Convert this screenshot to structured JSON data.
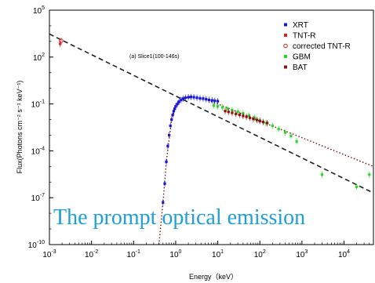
{
  "chart_data": {
    "type": "scatter",
    "xlabel": "Energy（keV）",
    "ylabel": "Flux(Photons cm⁻² s⁻¹ keV⁻¹)",
    "annotation": "(a) Slice1(100-146s)",
    "overlay_text": "The prompt optical emission",
    "x_scale": "log",
    "y_scale": "log",
    "xlim": [
      0.001,
      50000
    ],
    "ylim": [
      1e-10,
      100000
    ],
    "x_ticks": [
      {
        "value": 0.001,
        "base": "10",
        "exp": "-3"
      },
      {
        "value": 0.01,
        "base": "10",
        "exp": "-2"
      },
      {
        "value": 0.1,
        "base": "10",
        "exp": "-1"
      },
      {
        "value": 1,
        "base": "10",
        "exp": "0"
      },
      {
        "value": 10,
        "base": "10",
        "exp": "1"
      },
      {
        "value": 100,
        "base": "10",
        "exp": "2"
      },
      {
        "value": 1000,
        "base": "10",
        "exp": "3"
      },
      {
        "value": 10000,
        "base": "10",
        "exp": "4"
      }
    ],
    "y_ticks": [
      {
        "value": 1e-10,
        "base": "10",
        "exp": "-10"
      },
      {
        "value": 1e-07,
        "base": "10",
        "exp": "-7"
      },
      {
        "value": 0.0001,
        "base": "10",
        "exp": "-4"
      },
      {
        "value": 0.1,
        "base": "10",
        "exp": "-1"
      },
      {
        "value": 100,
        "base": "10",
        "exp": "2"
      },
      {
        "value": 100000,
        "base": "10",
        "exp": "5"
      }
    ],
    "legend_position": "top-right",
    "grid": false,
    "series": [
      {
        "name": "XRT",
        "color": "#1515d6",
        "marker": "dot",
        "x": [
          0.5,
          0.55,
          0.6,
          0.65,
          0.7,
          0.75,
          0.8,
          0.85,
          0.9,
          0.95,
          1.0,
          1.1,
          1.2,
          1.35,
          1.5,
          1.7,
          2.0,
          2.3,
          2.7,
          3.2,
          3.8,
          4.5,
          5.3,
          6.2,
          7.3,
          8.5,
          10
        ],
        "y": [
          5e-08,
          8e-07,
          2e-05,
          0.0002,
          0.001,
          0.004,
          0.01,
          0.02,
          0.035,
          0.05,
          0.07,
          0.1,
          0.14,
          0.18,
          0.22,
          0.25,
          0.27,
          0.28,
          0.27,
          0.25,
          0.23,
          0.22,
          0.2,
          0.18,
          0.17,
          0.16,
          0.15
        ]
      },
      {
        "name": "TNT-R",
        "color": "#e02020",
        "marker": "dot",
        "x": [
          0.0018
        ],
        "y": [
          700
        ]
      },
      {
        "name": "corrected TNT-R",
        "color": "#e02020",
        "marker": "open-circle",
        "x": [
          0.0019
        ],
        "y": [
          1100
        ]
      },
      {
        "name": "GBM",
        "color": "#22dd22",
        "marker": "dot",
        "x": [
          8,
          10,
          13,
          17,
          22,
          30,
          40,
          55,
          75,
          100,
          140,
          200,
          280,
          400,
          550,
          750,
          3000,
          20000,
          40000
        ],
        "y": [
          0.08,
          0.07,
          0.06,
          0.05,
          0.04,
          0.032,
          0.025,
          0.018,
          0.013,
          0.009,
          0.006,
          0.004,
          0.0025,
          0.0015,
          0.0009,
          0.0004,
          3e-06,
          5e-07,
          3e-06
        ]
      },
      {
        "name": "BAT",
        "color": "#8b1212",
        "marker": "dot",
        "x": [
          15,
          18,
          22,
          27,
          33,
          40,
          48,
          58,
          70,
          85,
          100,
          120,
          150
        ],
        "y": [
          0.035,
          0.031,
          0.027,
          0.023,
          0.02,
          0.017,
          0.015,
          0.013,
          0.011,
          0.0095,
          0.008,
          0.007,
          0.006
        ]
      }
    ],
    "model_lines": [
      {
        "style": "dashed",
        "color": "#222222",
        "x": [
          0.001,
          50000
        ],
        "y": [
          3000,
          2e-07
        ]
      },
      {
        "style": "dotted",
        "color": "#7a1010",
        "x": [
          0.4,
          0.5,
          0.6,
          0.8,
          1,
          1.5,
          2,
          3,
          5,
          10,
          30,
          100,
          300,
          1000,
          5000,
          50000
        ],
        "y": [
          1e-10,
          5e-08,
          2e-05,
          0.01,
          0.07,
          0.22,
          0.27,
          0.25,
          0.19,
          0.1,
          0.03,
          0.008,
          0.0025,
          0.0007,
          0.00012,
          1e-05
        ]
      }
    ]
  }
}
